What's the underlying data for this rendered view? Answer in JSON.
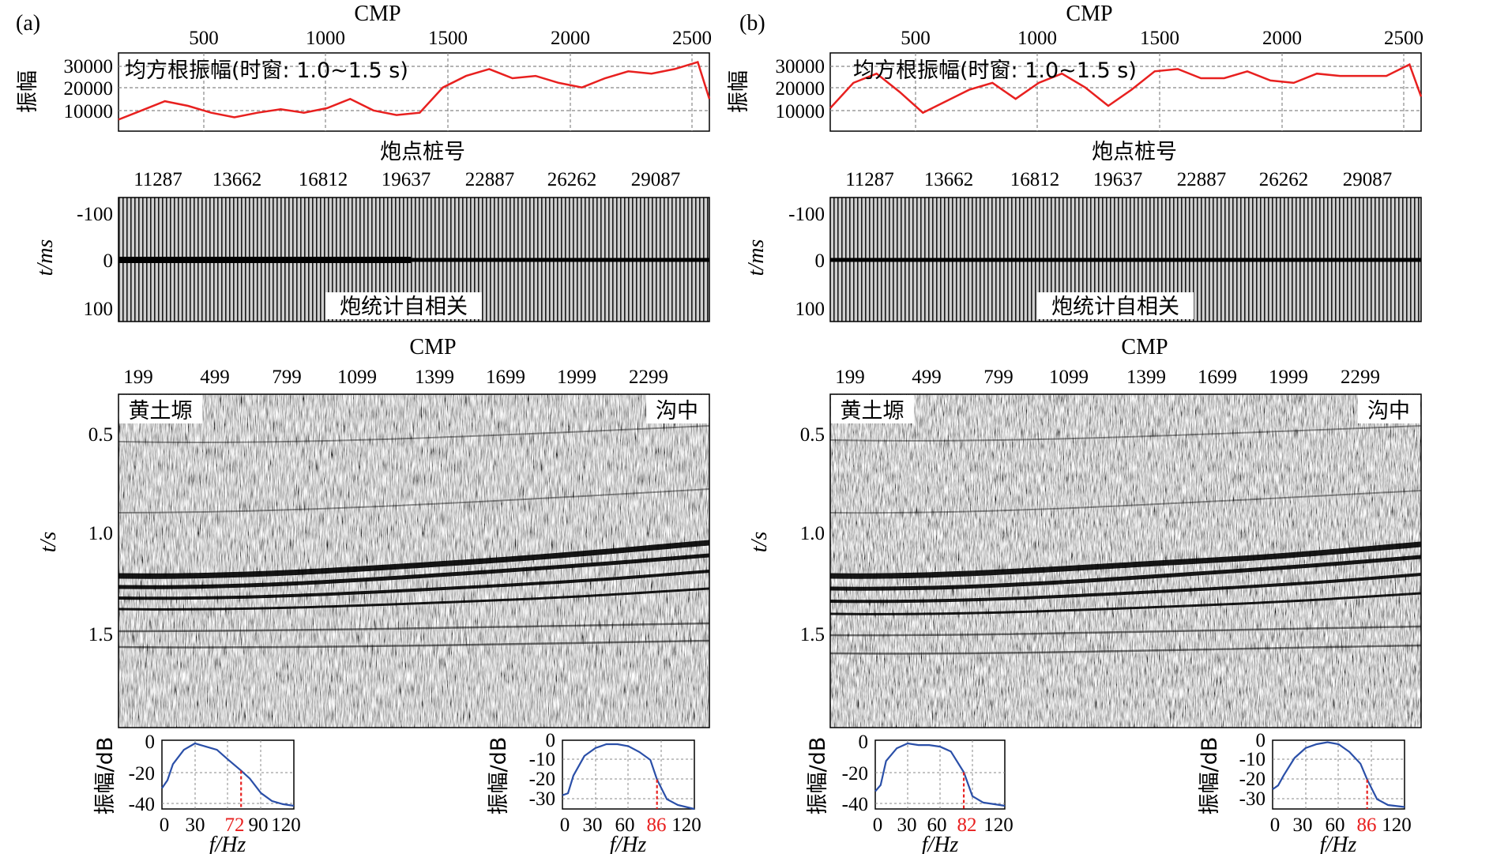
{
  "figure": {
    "panels": [
      {
        "label": "(a)",
        "rms": {
          "xlabel": "CMP",
          "ylabel": "振幅",
          "title": "均方根振幅(时窗: 1.0~1.5 s)",
          "xticks": [
            "500",
            "1000",
            "1500",
            "2000",
            "2500"
          ],
          "yticks": [
            "30000",
            "20000",
            "10000"
          ]
        },
        "shots": {
          "xlabel": "炮点桩号",
          "ylabel": "t/ms",
          "title": "炮统计自相关",
          "xticks": [
            "11287",
            "13662",
            "16812",
            "19637",
            "22887",
            "26262",
            "29087"
          ],
          "yticks": [
            "-100",
            "0",
            "100"
          ]
        },
        "section": {
          "xlabel": "CMP",
          "ylabel": "t/s",
          "left_tag": "黄土塬",
          "right_tag": "沟中",
          "xticks": [
            "199",
            "499",
            "799",
            "1099",
            "1399",
            "1699",
            "1999",
            "2299"
          ],
          "yticks": [
            "0.5",
            "1.0",
            "1.5"
          ]
        },
        "spectra": [
          {
            "ylabel": "振幅/dB",
            "xlabel": "f/Hz",
            "xticks": [
              "0",
              "30",
              "60",
              "90",
              "120"
            ],
            "yticks": [
              "0",
              "-20",
              "-40"
            ],
            "marker": "72"
          },
          {
            "ylabel": "振幅/dB",
            "xlabel": "f/Hz",
            "xticks": [
              "0",
              "30",
              "60",
              "90",
              "120"
            ],
            "yticks": [
              "0",
              "-10",
              "-20",
              "-30"
            ],
            "marker": "86"
          }
        ]
      },
      {
        "label": "(b)",
        "rms": {
          "xlabel": "CMP",
          "ylabel": "振幅",
          "title": "均方根振幅(时窗: 1.0~1.5 s)",
          "xticks": [
            "500",
            "1000",
            "1500",
            "2000",
            "2500"
          ],
          "yticks": [
            "30000",
            "20000",
            "10000"
          ]
        },
        "shots": {
          "xlabel": "炮点桩号",
          "ylabel": "t/ms",
          "title": "炮统计自相关",
          "xticks": [
            "11287",
            "13662",
            "16812",
            "19637",
            "22887",
            "26262",
            "29087"
          ],
          "yticks": [
            "-100",
            "0",
            "100"
          ]
        },
        "section": {
          "xlabel": "CMP",
          "ylabel": "t/s",
          "left_tag": "黄土塬",
          "right_tag": "沟中",
          "xticks": [
            "199",
            "499",
            "799",
            "1099",
            "1399",
            "1699",
            "1999",
            "2299"
          ],
          "yticks": [
            "0.5",
            "1.0",
            "1.5"
          ]
        },
        "spectra": [
          {
            "ylabel": "振幅/dB",
            "xlabel": "f/Hz",
            "xticks": [
              "0",
              "30",
              "60",
              "90",
              "120"
            ],
            "yticks": [
              "0",
              "-20",
              "-40"
            ],
            "marker": "82"
          },
          {
            "ylabel": "振幅/dB",
            "xlabel": "f/Hz",
            "xticks": [
              "0",
              "30",
              "60",
              "90",
              "120"
            ],
            "yticks": [
              "0",
              "-10",
              "-20",
              "-30"
            ],
            "marker": "86"
          }
        ]
      }
    ],
    "colors": {
      "rms_line": "#e8201f",
      "spectrum_line": "#2a4fa8",
      "marker": "#e8201f",
      "grid": "#7a7a7a"
    }
  },
  "chart_data": [
    {
      "type": "line",
      "panel": "a",
      "name_in_figure": "均方根振幅(时窗: 1.0~1.5 s)",
      "xlabel": "CMP",
      "ylabel": "振幅",
      "xlim": [
        0,
        2550
      ],
      "ylim": [
        3000,
        37000
      ],
      "x": [
        0,
        100,
        200,
        300,
        400,
        500,
        600,
        700,
        800,
        900,
        1000,
        1100,
        1200,
        1300,
        1400,
        1500,
        1600,
        1700,
        1800,
        1900,
        2000,
        2100,
        2200,
        2300,
        2400,
        2500,
        2550
      ],
      "y": [
        8000,
        12000,
        16000,
        14000,
        11000,
        9000,
        11000,
        12500,
        11000,
        13000,
        17000,
        12000,
        10000,
        11000,
        22000,
        27000,
        30000,
        26000,
        27000,
        24000,
        22000,
        26000,
        29000,
        28000,
        30000,
        33000,
        17000
      ]
    },
    {
      "type": "line",
      "panel": "b",
      "name_in_figure": "均方根振幅(时窗: 1.0~1.5 s)",
      "xlabel": "CMP",
      "ylabel": "振幅",
      "xlim": [
        0,
        2550
      ],
      "ylim": [
        3000,
        37000
      ],
      "x": [
        0,
        100,
        200,
        300,
        400,
        500,
        600,
        700,
        800,
        900,
        1000,
        1100,
        1200,
        1300,
        1400,
        1500,
        1600,
        1700,
        1800,
        1900,
        2000,
        2100,
        2200,
        2300,
        2400,
        2500,
        2550
      ],
      "y": [
        13000,
        24000,
        28000,
        20000,
        11000,
        16000,
        21000,
        24000,
        17000,
        24000,
        28000,
        22000,
        14000,
        21000,
        29000,
        30000,
        26000,
        26000,
        29000,
        25000,
        24000,
        28000,
        27000,
        27000,
        27000,
        32000,
        18000
      ]
    },
    {
      "type": "line",
      "panel": "a-left",
      "xlabel": "f/Hz",
      "ylabel": "振幅/dB",
      "xlim": [
        0,
        120
      ],
      "ylim": [
        -43,
        0
      ],
      "x": [
        0,
        5,
        10,
        20,
        30,
        40,
        50,
        60,
        72,
        80,
        90,
        100,
        110,
        120
      ],
      "y": [
        -30,
        -25,
        -15,
        -6,
        -2,
        -4,
        -6,
        -12,
        -19,
        -24,
        -33,
        -38,
        -40,
        -41
      ]
    },
    {
      "type": "line",
      "panel": "a-right",
      "xlabel": "f/Hz",
      "ylabel": "振幅/dB",
      "xlim": [
        0,
        120
      ],
      "ylim": [
        -35,
        0
      ],
      "x": [
        0,
        5,
        10,
        20,
        30,
        40,
        50,
        60,
        70,
        80,
        86,
        95,
        105,
        120
      ],
      "y": [
        -28,
        -27,
        -18,
        -8,
        -4,
        -2,
        -2,
        -3,
        -6,
        -10,
        -20,
        -30,
        -33,
        -35
      ]
    },
    {
      "type": "line",
      "panel": "b-left",
      "xlabel": "f/Hz",
      "ylabel": "振幅/dB",
      "xlim": [
        0,
        120
      ],
      "ylim": [
        -43,
        0
      ],
      "x": [
        0,
        5,
        10,
        20,
        30,
        40,
        50,
        60,
        70,
        82,
        90,
        100,
        110,
        120
      ],
      "y": [
        -32,
        -28,
        -13,
        -5,
        -2,
        -3,
        -3,
        -4,
        -7,
        -20,
        -35,
        -39,
        -40,
        -41
      ]
    },
    {
      "type": "line",
      "panel": "b-right",
      "xlabel": "f/Hz",
      "ylabel": "振幅/dB",
      "xlim": [
        0,
        120
      ],
      "ylim": [
        -35,
        0
      ],
      "x": [
        0,
        5,
        10,
        20,
        30,
        40,
        50,
        60,
        70,
        80,
        86,
        95,
        105,
        120
      ],
      "y": [
        -25,
        -23,
        -18,
        -9,
        -4,
        -2,
        -1,
        -2,
        -6,
        -12,
        -20,
        -30,
        -33,
        -34
      ]
    }
  ]
}
